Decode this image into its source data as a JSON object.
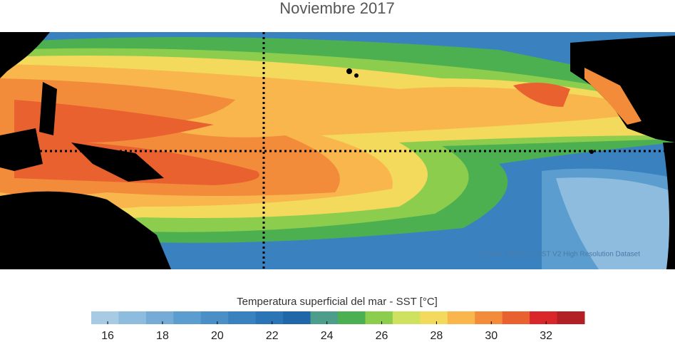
{
  "title": "Noviembre 2017",
  "source": "Fuente: NOAA OI SST V2 High Resolution Dataset",
  "colorbar": {
    "label": "Temperatura superficial del mar - SST  [°C]",
    "clim": [
      15.4,
      33.4
    ],
    "ticks": [
      16,
      18,
      20,
      22,
      24,
      26,
      28,
      30,
      32
    ],
    "colors": [
      "#a6cbe3",
      "#8dbcde",
      "#74acd6",
      "#5b9dce",
      "#4a8fc6",
      "#3a82bf",
      "#2b74b5",
      "#1f67a8",
      "#4c9e8a",
      "#4cb050",
      "#8ccd4e",
      "#cfe260",
      "#f3d95c",
      "#f8b64c",
      "#f28c3a",
      "#ea6130",
      "#d8262b",
      "#b21f24"
    ]
  }
}
